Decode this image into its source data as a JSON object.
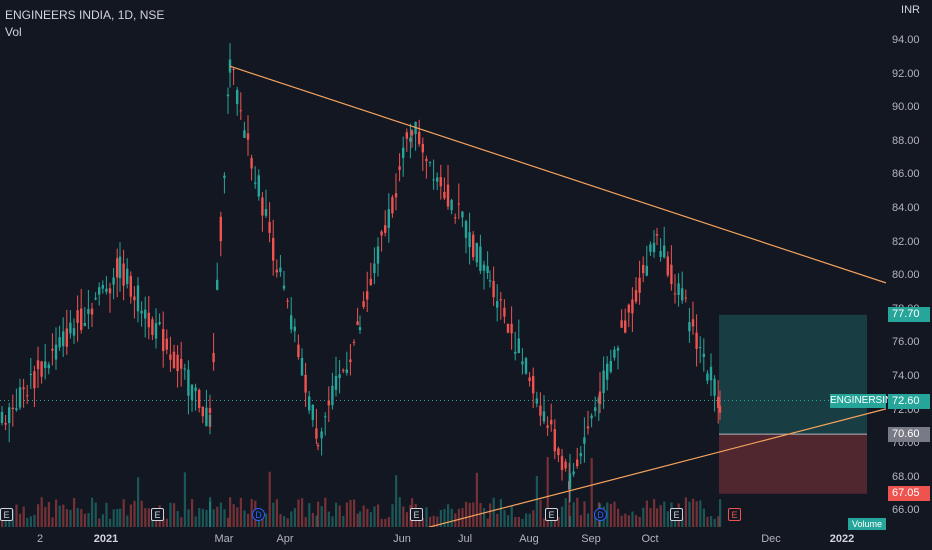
{
  "legend": {
    "title": "ENGINEERS INDIA, 1D, NSE",
    "sub": "Vol"
  },
  "currency": "INR",
  "colors": {
    "background": "#131722",
    "up": "#26a69a",
    "down": "#ef5350",
    "trendline": "#f7a35c",
    "profit_zone": "#26a69a",
    "loss_zone": "#ef5350"
  },
  "y_axis_labels": [
    "94.00",
    "92.00",
    "90.00",
    "88.00",
    "86.00",
    "84.00",
    "82.00",
    "80.00",
    "78.00",
    "76.00",
    "74.00",
    "72.00",
    "70.00",
    "68.00",
    "66.00"
  ],
  "x_axis_labels": [
    {
      "label": "2",
      "bold": false
    },
    {
      "label": "2021",
      "bold": true
    },
    {
      "label": "Mar",
      "bold": false
    },
    {
      "label": "Apr",
      "bold": false
    },
    {
      "label": "Jun",
      "bold": false
    },
    {
      "label": "Jul",
      "bold": false
    },
    {
      "label": "Aug",
      "bold": false
    },
    {
      "label": "Sep",
      "bold": false
    },
    {
      "label": "Oct",
      "bold": false
    },
    {
      "label": "Dec",
      "bold": false
    },
    {
      "label": "2022",
      "bold": true
    }
  ],
  "price_tags": {
    "target": "77.70",
    "last": "72.60",
    "entry": "70.60",
    "stop": "67.05"
  },
  "series_tag": "ENGINERSIN",
  "volume_tag": "Volume",
  "events": [
    "E",
    "E",
    "D",
    "E",
    "E",
    "D",
    "E",
    "E"
  ],
  "chart_data": {
    "type": "candlestick",
    "symbol": "ENGINEERS INDIA",
    "interval": "1D",
    "exchange": "NSE",
    "ylim": [
      65.0,
      95.5
    ],
    "price_anchors": [
      {
        "date": "Jan 2021 start",
        "price": 71.5
      },
      {
        "date": "Jan 2021",
        "price": 80.5
      },
      {
        "date": "Feb 2021",
        "price": 71.5
      },
      {
        "date": "Mar 2021 peak",
        "price": 92.5
      },
      {
        "date": "Apr 2021",
        "price": 70.5
      },
      {
        "date": "May 2021",
        "price": 77.0
      },
      {
        "date": "Jun 2021 peak",
        "price": 89.0
      },
      {
        "date": "Jul 2021",
        "price": 80.0
      },
      {
        "date": "Aug 2021 low",
        "price": 67.8
      },
      {
        "date": "Sep 2021",
        "price": 73.0
      },
      {
        "date": "Oct 2021 peak",
        "price": 82.5
      },
      {
        "date": "Nov 2021 last",
        "price": 72.6
      }
    ],
    "trendlines": [
      {
        "name": "upper",
        "from": {
          "date": "Mar 2021",
          "price": 92.5
        },
        "to": {
          "date": "Jan 2022",
          "price": 79.6
        }
      },
      {
        "name": "lower",
        "from": {
          "date": "Jun 2021",
          "price": 65.0
        },
        "to": {
          "date": "Dec 2021",
          "price": 72.7
        }
      }
    ],
    "position": {
      "target": 77.7,
      "entry": 70.6,
      "stop": 67.05,
      "last": 72.6
    }
  }
}
